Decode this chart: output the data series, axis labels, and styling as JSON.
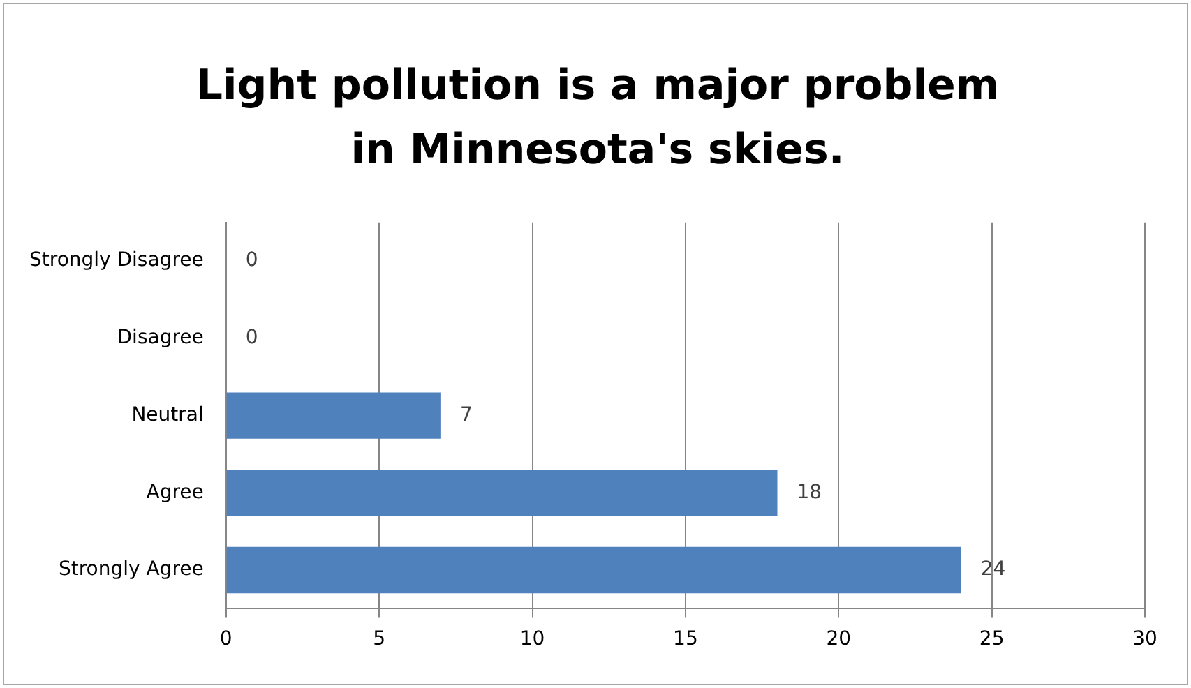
{
  "chart_data": {
    "type": "bar",
    "orientation": "horizontal",
    "title": "Light pollution is a major problem in Minnesota's skies.",
    "categories": [
      "Strongly Disagree",
      "Disagree",
      "Neutral",
      "Agree",
      "Strongly Agree"
    ],
    "values": [
      0,
      0,
      7,
      18,
      24
    ],
    "color": "#4f81bd",
    "xlim": [
      0,
      30
    ],
    "xticks": [
      0,
      5,
      10,
      15,
      20,
      25,
      30
    ],
    "grid": "x",
    "legend": false,
    "data_labels": true
  }
}
